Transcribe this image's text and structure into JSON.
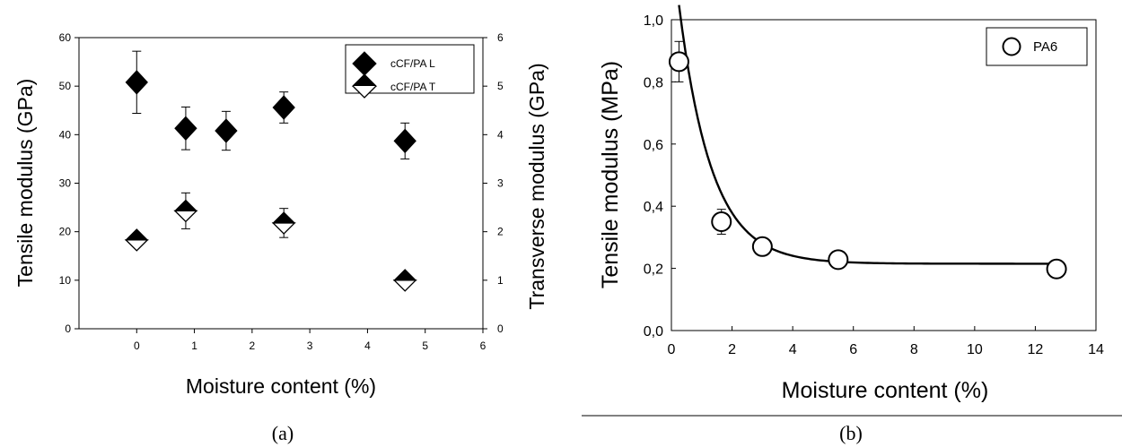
{
  "chart_data": [
    {
      "id": "a",
      "type": "scatter",
      "caption": "(a)",
      "xlabel": "Moisture content (%)",
      "ylabel": "Tensile modulus (GPa)",
      "y2label": "Transverse modulus (GPa)",
      "xlim": [
        -1,
        6
      ],
      "ylim": [
        0,
        60
      ],
      "y2lim": [
        0,
        6
      ],
      "xticks": [
        "0",
        "1",
        "2",
        "3",
        "4",
        "5",
        "6"
      ],
      "yticks": [
        "0",
        "10",
        "20",
        "30",
        "40",
        "50",
        "60"
      ],
      "y2ticks": [
        "0",
        "1",
        "2",
        "3",
        "4",
        "5",
        "6"
      ],
      "legend_position": "top-right",
      "series": [
        {
          "name": "cCF/PA L",
          "marker": "filled-diamond",
          "axis": "left",
          "x": [
            0.0,
            0.85,
            1.55,
            2.55,
            4.65
          ],
          "y": [
            50.8,
            41.3,
            40.8,
            45.6,
            38.7
          ],
          "err": [
            6.4,
            4.4,
            4.0,
            3.2,
            3.7
          ]
        },
        {
          "name": "cCF/PA T",
          "marker": "half-diamond",
          "axis": "right",
          "x": [
            0.0,
            0.85,
            2.55,
            4.65
          ],
          "y": [
            1.83,
            2.43,
            2.18,
            1.0
          ],
          "err": [
            0.12,
            0.37,
            0.3,
            0.05
          ]
        }
      ]
    },
    {
      "id": "b",
      "type": "scatter",
      "caption": "(b)",
      "xlabel": "Moisture content (%)",
      "ylabel": "Tensile modulus (MPa)",
      "xlim": [
        0,
        14
      ],
      "ylim": [
        0,
        1.0
      ],
      "xticks": [
        "0",
        "2",
        "4",
        "6",
        "8",
        "10",
        "12",
        "14"
      ],
      "yticks": [
        "0,0",
        "0,2",
        "0,4",
        "0,6",
        "0,8",
        "1,0"
      ],
      "legend_position": "top-right",
      "series": [
        {
          "name": "PA6",
          "marker": "open-circle",
          "x": [
            0.25,
            1.65,
            3.0,
            5.5,
            12.7
          ],
          "y": [
            0.865,
            0.35,
            0.27,
            0.228,
            0.198
          ],
          "err": [
            0.065,
            0.04,
            0.015,
            0.01,
            0.01
          ],
          "xerr": [
            0,
            0,
            0,
            0,
            0.3
          ]
        }
      ],
      "fit_curve": {
        "form": "y = 0.215 + 1.05*exp(-0.93*x)",
        "x_range": [
          0.25,
          12.7
        ]
      }
    }
  ]
}
